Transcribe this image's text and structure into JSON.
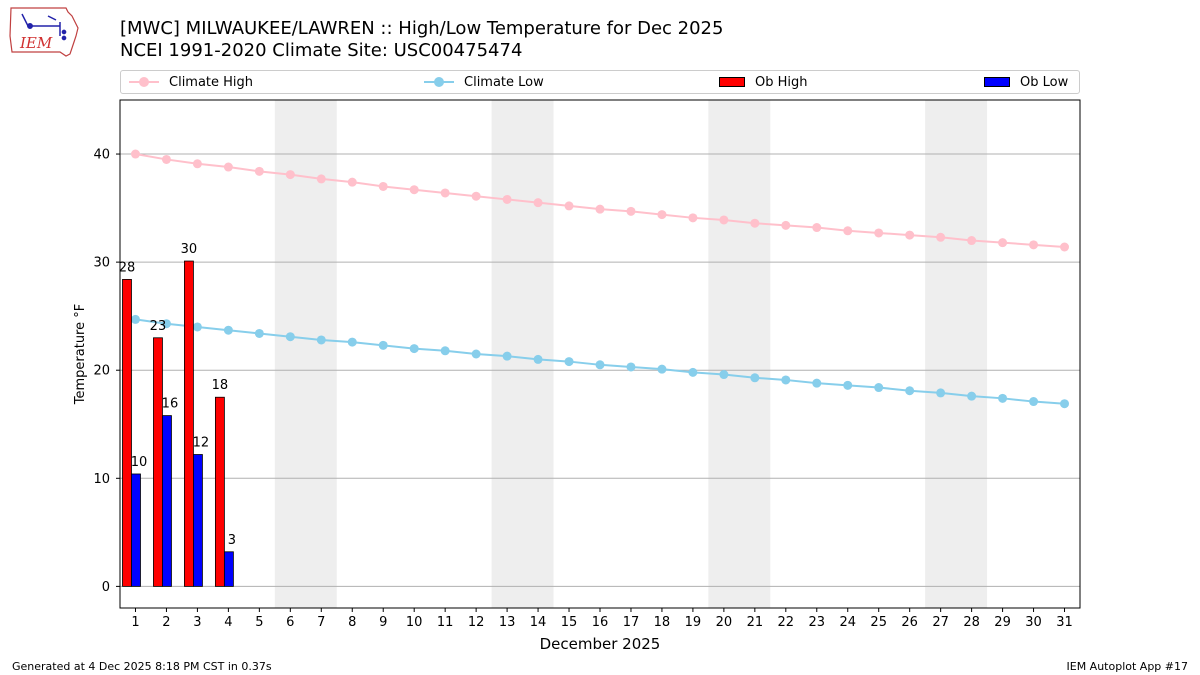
{
  "header": {
    "title_line1": "[MWC] MILWAUKEE/LAWREN :: High/Low Temperature for Dec 2025",
    "title_line2": "NCEI 1991-2020 Climate Site: USC00475474"
  },
  "logo": {
    "text": "IEM"
  },
  "footer": {
    "left": "Generated at 4 Dec 2025 8:18 PM CST in 0.37s",
    "right": "IEM Autoplot App #17"
  },
  "legend": {
    "items": [
      "Climate High",
      "Climate Low",
      "Ob High",
      "Ob Low"
    ]
  },
  "colors": {
    "climate_high": "#ffc0cb",
    "climate_low": "#87ceeb",
    "ob_high": "#ff0000",
    "ob_low": "#0000ff",
    "weekend_shade": "#eeeeee",
    "grid": "#b0b0b0"
  },
  "chart_data": {
    "type": "bar",
    "xlabel": "December 2025",
    "ylabel": "Temperature °F",
    "x": [
      1,
      2,
      3,
      4,
      5,
      6,
      7,
      8,
      9,
      10,
      11,
      12,
      13,
      14,
      15,
      16,
      17,
      18,
      19,
      20,
      21,
      22,
      23,
      24,
      25,
      26,
      27,
      28,
      29,
      30,
      31
    ],
    "xlim": [
      0.5,
      31.5
    ],
    "ylim": [
      -2,
      45
    ],
    "yticks": [
      0,
      10,
      20,
      30,
      40
    ],
    "grid": "horizontal",
    "legend_placement": "top",
    "shaded_days": [
      [
        6,
        7
      ],
      [
        13,
        14
      ],
      [
        20,
        21
      ],
      [
        27,
        28
      ]
    ],
    "series": [
      {
        "name": "Climate High",
        "kind": "line",
        "values": [
          40.0,
          39.5,
          39.1,
          38.8,
          38.4,
          38.1,
          37.7,
          37.4,
          37.0,
          36.7,
          36.4,
          36.1,
          35.8,
          35.5,
          35.2,
          34.9,
          34.7,
          34.4,
          34.1,
          33.9,
          33.6,
          33.4,
          33.2,
          32.9,
          32.7,
          32.5,
          32.3,
          32.0,
          31.8,
          31.6,
          31.4
        ]
      },
      {
        "name": "Climate Low",
        "kind": "line",
        "values": [
          24.7,
          24.3,
          24.0,
          23.7,
          23.4,
          23.1,
          22.8,
          22.6,
          22.3,
          22.0,
          21.8,
          21.5,
          21.3,
          21.0,
          20.8,
          20.5,
          20.3,
          20.1,
          19.8,
          19.6,
          19.3,
          19.1,
          18.8,
          18.6,
          18.4,
          18.1,
          17.9,
          17.6,
          17.4,
          17.1,
          16.9
        ]
      },
      {
        "name": "Ob High",
        "kind": "bar",
        "x": [
          1,
          2,
          3,
          4
        ],
        "values": [
          28.4,
          23.0,
          30.1,
          17.5
        ],
        "labels": [
          "28",
          "23",
          "30",
          "18"
        ]
      },
      {
        "name": "Ob Low",
        "kind": "bar",
        "x": [
          1,
          2,
          3,
          4
        ],
        "values": [
          10.4,
          15.8,
          12.2,
          3.2
        ],
        "labels": [
          "10",
          "16",
          "12",
          "3"
        ]
      }
    ]
  }
}
